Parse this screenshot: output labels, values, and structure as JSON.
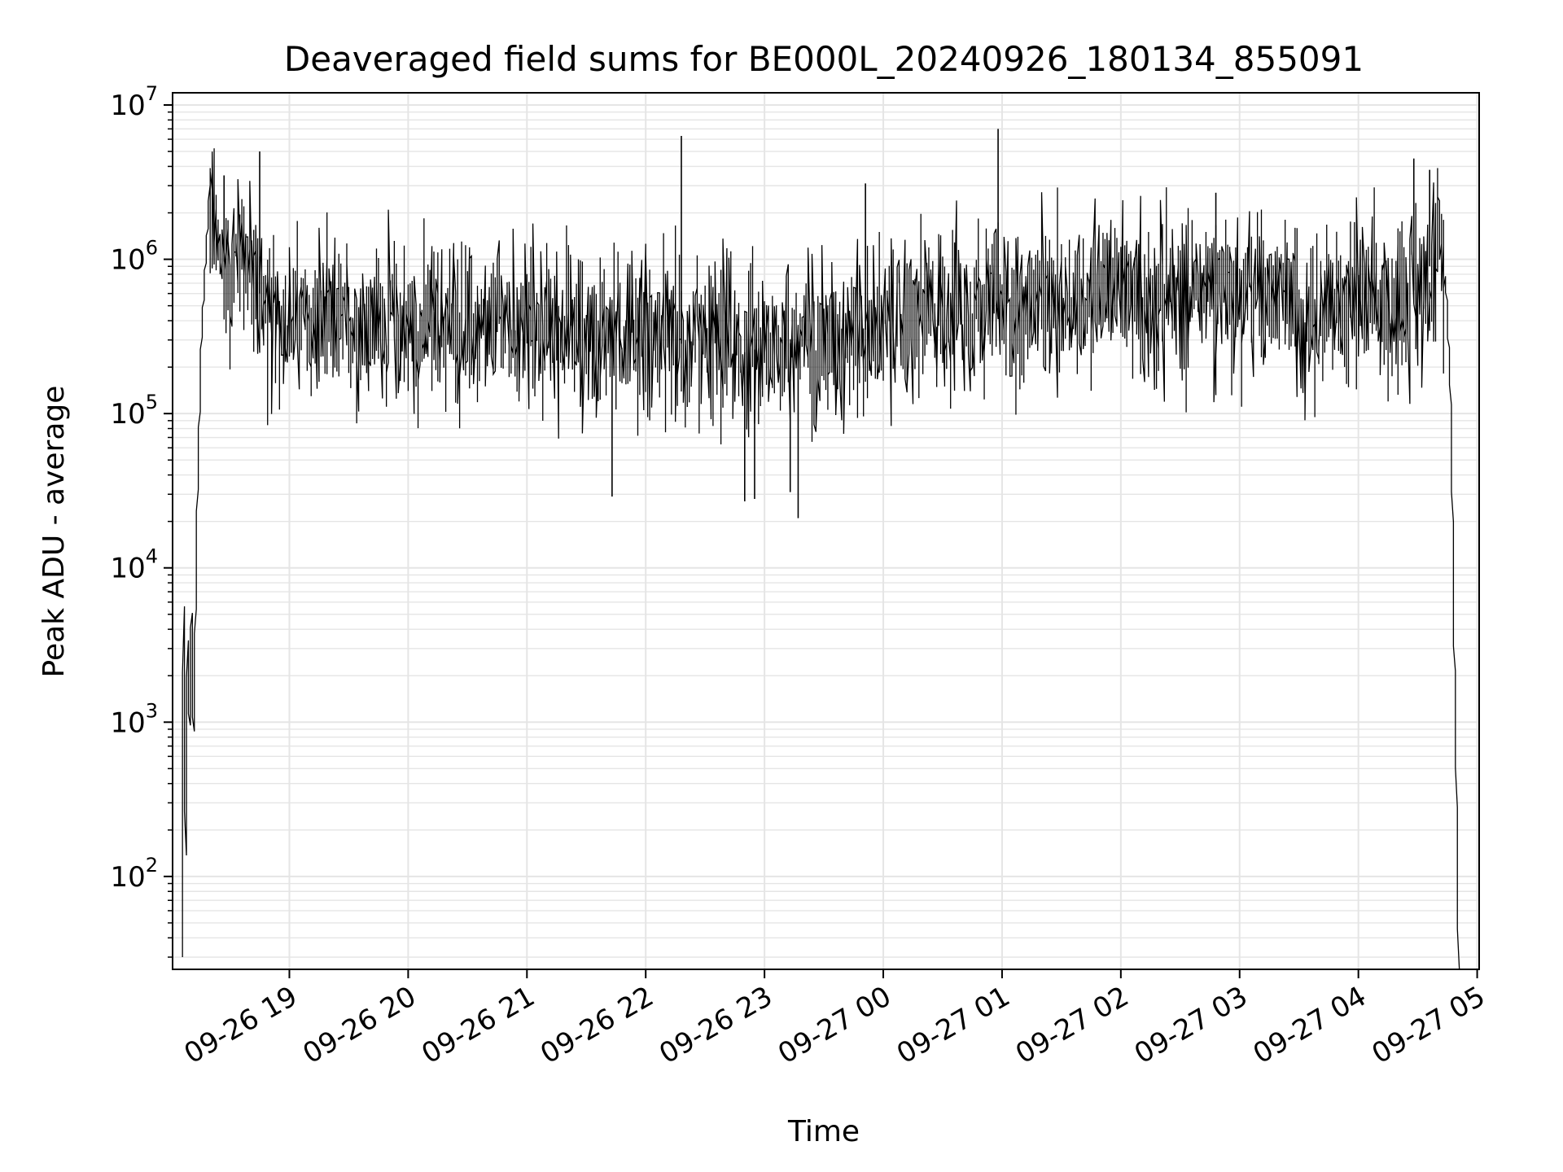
{
  "chart_data": {
    "type": "line",
    "title": "Deaveraged field sums for BE000L_20240926_180134_855091",
    "xlabel": "Time",
    "ylabel": "Peak ADU - average",
    "yscale": "log",
    "ylim": [
      25,
      12000000
    ],
    "xlim": [
      "2024-09-26 18:01",
      "2024-09-27 05:01"
    ],
    "grid": true,
    "line_color": "#000000",
    "grid_color": "#e5e5e5",
    "x_ticks": [
      {
        "value": "2024-09-26 19:00",
        "label": "09-26 19"
      },
      {
        "value": "2024-09-26 20:00",
        "label": "09-26 20"
      },
      {
        "value": "2024-09-26 21:00",
        "label": "09-26 21"
      },
      {
        "value": "2024-09-26 22:00",
        "label": "09-26 22"
      },
      {
        "value": "2024-09-26 23:00",
        "label": "09-26 23"
      },
      {
        "value": "2024-09-27 00:00",
        "label": "09-27 00"
      },
      {
        "value": "2024-09-27 01:00",
        "label": "09-27 01"
      },
      {
        "value": "2024-09-27 02:00",
        "label": "09-27 02"
      },
      {
        "value": "2024-09-27 03:00",
        "label": "09-27 03"
      },
      {
        "value": "2024-09-27 04:00",
        "label": "09-27 04"
      },
      {
        "value": "2024-09-27 05:00",
        "label": "09-27 05"
      }
    ],
    "y_ticks": [
      {
        "value": 100,
        "base": "10",
        "exp": "2"
      },
      {
        "value": 1000,
        "base": "10",
        "exp": "3"
      },
      {
        "value": 10000,
        "base": "10",
        "exp": "4"
      },
      {
        "value": 100000,
        "base": "10",
        "exp": "5"
      },
      {
        "value": 1000000,
        "base": "10",
        "exp": "6"
      },
      {
        "value": 10000000,
        "base": "10",
        "exp": "7"
      }
    ],
    "series": [
      {
        "x": [
          "2024-09-26 18:06",
          "2024-09-26 18:07",
          "2024-09-26 18:08",
          "2024-09-26 18:09",
          "2024-09-26 18:10",
          "2024-09-26 18:11",
          "2024-09-26 18:12",
          "2024-09-26 18:14",
          "2024-09-26 18:16",
          "2024-09-26 18:18",
          "2024-09-26 18:20",
          "2024-09-26 18:24",
          "2024-09-26 18:28",
          "2024-09-26 18:32",
          "2024-09-26 18:36",
          "2024-09-26 18:40",
          "2024-09-26 18:45",
          "2024-09-26 18:50",
          "2024-09-26 18:55",
          "2024-09-26 19:00",
          "2024-09-26 19:05",
          "2024-09-26 19:10",
          "2024-09-26 19:20",
          "2024-09-26 19:30",
          "2024-09-26 19:40",
          "2024-09-26 19:50",
          "2024-09-26 20:00",
          "2024-09-26 20:10",
          "2024-09-26 20:20",
          "2024-09-26 20:30",
          "2024-09-26 20:40",
          "2024-09-26 20:50",
          "2024-09-26 21:00",
          "2024-09-26 21:10",
          "2024-09-26 21:20",
          "2024-09-26 21:30",
          "2024-09-26 21:40",
          "2024-09-26 21:50",
          "2024-09-26 22:00",
          "2024-09-26 22:10",
          "2024-09-26 22:20",
          "2024-09-26 22:30",
          "2024-09-26 22:40",
          "2024-09-26 22:50",
          "2024-09-26 23:00",
          "2024-09-26 23:10",
          "2024-09-26 23:20",
          "2024-09-26 23:30",
          "2024-09-26 23:40",
          "2024-09-26 23:50",
          "2024-09-27 00:00",
          "2024-09-27 00:10",
          "2024-09-27 00:20",
          "2024-09-27 00:30",
          "2024-09-27 00:40",
          "2024-09-27 00:50",
          "2024-09-27 01:00",
          "2024-09-27 01:10",
          "2024-09-27 01:20",
          "2024-09-27 01:30",
          "2024-09-27 01:40",
          "2024-09-27 01:50",
          "2024-09-27 02:00",
          "2024-09-27 02:10",
          "2024-09-27 02:20",
          "2024-09-27 02:30",
          "2024-09-27 02:40",
          "2024-09-27 02:50",
          "2024-09-27 03:00",
          "2024-09-27 03:10",
          "2024-09-27 03:20",
          "2024-09-27 03:30",
          "2024-09-27 03:40",
          "2024-09-27 03:50",
          "2024-09-27 04:00",
          "2024-09-27 04:10",
          "2024-09-27 04:20",
          "2024-09-27 04:30",
          "2024-09-27 04:36",
          "2024-09-27 04:40",
          "2024-09-27 04:43",
          "2024-09-27 04:45",
          "2024-09-27 04:47",
          "2024-09-27 04:48",
          "2024-09-27 04:49",
          "2024-09-27 04:50",
          "2024-09-27 04:51"
        ],
        "y": [
          30,
          5800,
          130,
          3500,
          900,
          5500,
          800,
          30000,
          300000,
          900000,
          2500000,
          1200000,
          900000,
          700000,
          1500000,
          800000,
          600000,
          450000,
          400000,
          420000,
          400000,
          380000,
          350000,
          400000,
          380000,
          400000,
          380000,
          370000,
          400000,
          350000,
          330000,
          380000,
          380000,
          350000,
          380000,
          300000,
          330000,
          350000,
          320000,
          300000,
          280000,
          300000,
          270000,
          250000,
          270000,
          280000,
          300000,
          310000,
          330000,
          350000,
          350000,
          380000,
          420000,
          450000,
          500000,
          550000,
          480000,
          450000,
          500000,
          550000,
          600000,
          650000,
          620000,
          600000,
          550000,
          580000,
          650000,
          700000,
          600000,
          600000,
          550000,
          520000,
          500000,
          500000,
          520000,
          500000,
          550000,
          650000,
          900000,
          1000000,
          1100000,
          600000,
          150000,
          30000,
          3000,
          500,
          25
        ],
        "spikes": [
          {
            "x": "2024-09-26 18:27",
            "y": 3500000
          },
          {
            "x": "2024-09-26 18:45",
            "y": 5000000
          },
          {
            "x": "2024-09-26 22:18",
            "y": 6300000
          },
          {
            "x": "2024-09-26 23:51",
            "y": 3100000
          },
          {
            "x": "2024-09-27 00:58",
            "y": 7000000
          },
          {
            "x": "2024-09-27 02:48",
            "y": 2700000
          },
          {
            "x": "2024-09-27 04:28",
            "y": 4500000
          },
          {
            "x": "2024-09-27 04:36",
            "y": 3800000
          }
        ],
        "dips": [
          {
            "x": "2024-09-26 21:43",
            "y": 29000
          },
          {
            "x": "2024-09-26 22:50",
            "y": 27000
          },
          {
            "x": "2024-09-26 22:55",
            "y": 28000
          },
          {
            "x": "2024-09-26 23:13",
            "y": 31000
          },
          {
            "x": "2024-09-26 23:17",
            "y": 21000
          }
        ]
      }
    ]
  }
}
